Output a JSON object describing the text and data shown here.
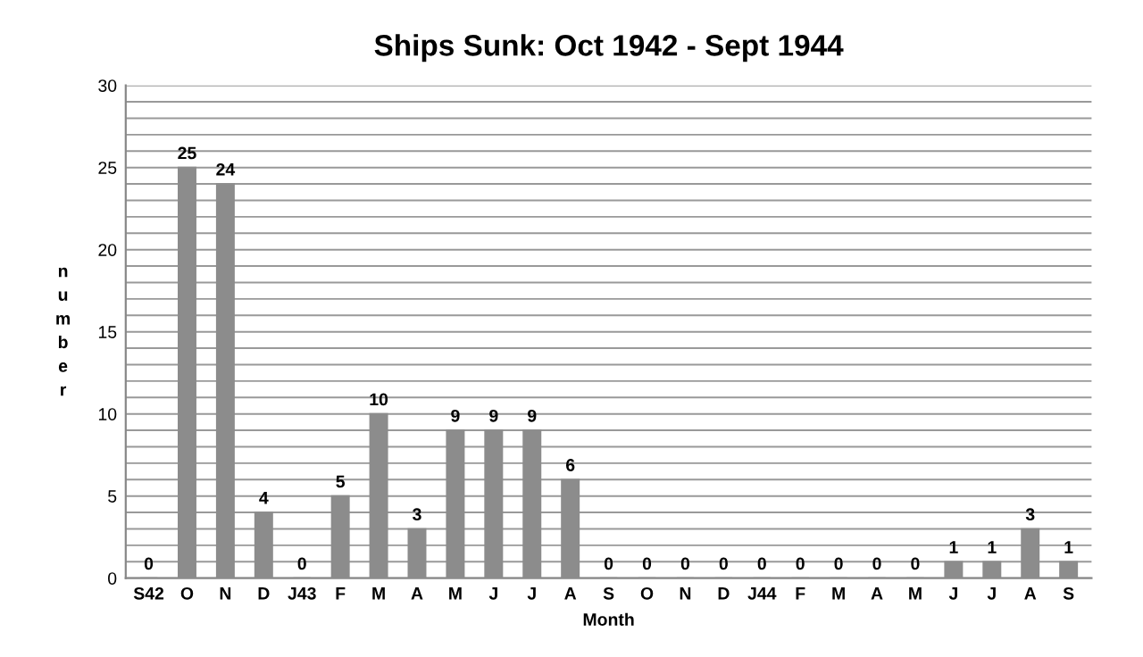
{
  "chart_data": {
    "type": "bar",
    "title": "Ships Sunk: Oct 1942 - Sept 1944",
    "xlabel": "Month",
    "ylabel": "number",
    "categories": [
      "S42",
      "O",
      "N",
      "D",
      "J43",
      "F",
      "M",
      "A",
      "M",
      "J",
      "J",
      "A",
      "S",
      "O",
      "N",
      "D",
      "J44",
      "F",
      "M",
      "A",
      "M",
      "J",
      "J",
      "A",
      "S"
    ],
    "values": [
      0,
      25,
      24,
      4,
      0,
      5,
      10,
      3,
      9,
      9,
      9,
      6,
      0,
      0,
      0,
      0,
      0,
      0,
      0,
      0,
      0,
      1,
      1,
      3,
      1
    ],
    "color": "#8c8c8c",
    "data_labels": true,
    "ylim": [
      0,
      30
    ],
    "yticks": [
      0,
      {
        "value": 1,
        "label": null
      },
      {
        "value": 2,
        "label": null
      },
      {
        "value": 3,
        "label": null
      },
      {
        "value": 4,
        "label": null
      },
      5,
      {
        "value": 6,
        "label": null
      },
      {
        "value": 7,
        "label": null
      },
      {
        "value": 8,
        "label": null
      },
      {
        "value": 9,
        "label": null
      },
      10,
      {
        "value": 11,
        "label": null
      },
      {
        "value": 12,
        "label": null
      },
      {
        "value": 13,
        "label": null
      },
      {
        "value": 14,
        "label": null
      },
      15,
      {
        "value": 16,
        "label": null
      },
      {
        "value": 17,
        "label": null
      },
      {
        "value": 18,
        "label": null
      },
      {
        "value": 19,
        "label": null
      },
      20,
      {
        "value": 21,
        "label": null
      },
      {
        "value": 22,
        "label": null
      },
      {
        "value": 23,
        "label": null
      },
      {
        "value": 24,
        "label": null
      },
      25,
      {
        "value": 26,
        "label": null
      },
      {
        "value": 27,
        "label": null
      },
      {
        "value": 28,
        "label": null
      },
      {
        "value": 29,
        "label": null
      },
      30
    ],
    "grid": "y"
  }
}
